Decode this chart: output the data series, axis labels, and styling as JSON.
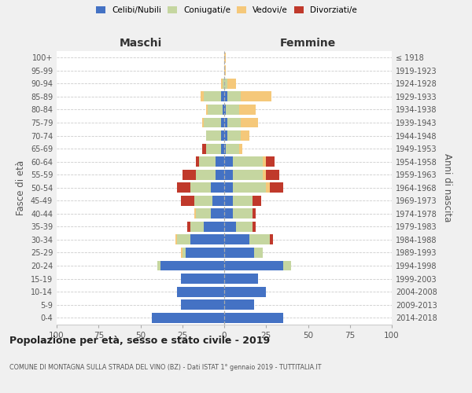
{
  "age_groups": [
    "0-4",
    "5-9",
    "10-14",
    "15-19",
    "20-24",
    "25-29",
    "30-34",
    "35-39",
    "40-44",
    "45-49",
    "50-54",
    "55-59",
    "60-64",
    "65-69",
    "70-74",
    "75-79",
    "80-84",
    "85-89",
    "90-94",
    "95-99",
    "100+"
  ],
  "birth_years": [
    "2014-2018",
    "2009-2013",
    "2004-2008",
    "1999-2003",
    "1994-1998",
    "1989-1993",
    "1984-1988",
    "1979-1983",
    "1974-1978",
    "1969-1973",
    "1964-1968",
    "1959-1963",
    "1954-1958",
    "1949-1953",
    "1944-1948",
    "1939-1943",
    "1934-1938",
    "1929-1933",
    "1924-1928",
    "1919-1923",
    "≤ 1918"
  ],
  "males": {
    "celibi": [
      43,
      26,
      28,
      26,
      38,
      23,
      20,
      12,
      8,
      7,
      8,
      5,
      5,
      2,
      2,
      2,
      1,
      2,
      0,
      0,
      0
    ],
    "coniugati": [
      0,
      0,
      0,
      0,
      2,
      2,
      8,
      8,
      9,
      11,
      12,
      12,
      10,
      9,
      9,
      10,
      9,
      10,
      1,
      0,
      0
    ],
    "vedovi": [
      0,
      0,
      0,
      0,
      0,
      1,
      1,
      0,
      1,
      0,
      0,
      0,
      0,
      0,
      0,
      1,
      1,
      2,
      1,
      0,
      0
    ],
    "divorziati": [
      0,
      0,
      0,
      0,
      0,
      0,
      0,
      2,
      0,
      8,
      8,
      8,
      2,
      2,
      0,
      0,
      0,
      0,
      0,
      0,
      0
    ]
  },
  "females": {
    "nubili": [
      35,
      18,
      25,
      20,
      35,
      18,
      15,
      7,
      5,
      5,
      5,
      5,
      5,
      1,
      2,
      2,
      1,
      2,
      0,
      0,
      0
    ],
    "coniugate": [
      0,
      0,
      0,
      0,
      5,
      5,
      12,
      10,
      12,
      12,
      20,
      18,
      18,
      8,
      8,
      8,
      8,
      8,
      2,
      0,
      0
    ],
    "vedove": [
      0,
      0,
      0,
      0,
      0,
      0,
      0,
      0,
      0,
      0,
      2,
      2,
      2,
      2,
      5,
      10,
      10,
      18,
      5,
      1,
      1
    ],
    "divorziate": [
      0,
      0,
      0,
      0,
      0,
      0,
      2,
      2,
      2,
      5,
      8,
      8,
      5,
      0,
      0,
      0,
      0,
      0,
      0,
      0,
      0
    ]
  },
  "colors": {
    "celibi": "#4472c4",
    "coniugati": "#c5d6a0",
    "vedovi": "#f5c87a",
    "divorziati": "#c0392b"
  },
  "xlim": 100,
  "title": "Popolazione per età, sesso e stato civile - 2019",
  "subtitle": "COMUNE DI MONTAGNA SULLA STRADA DEL VINO (BZ) - Dati ISTAT 1° gennaio 2019 - TUTTITALIA.IT",
  "ylabel_left": "Fasce di età",
  "ylabel_right": "Anni di nascita",
  "xlabel_left": "Maschi",
  "xlabel_right": "Femmine",
  "bg_color": "#f0f0f0",
  "plot_bg": "#ffffff"
}
